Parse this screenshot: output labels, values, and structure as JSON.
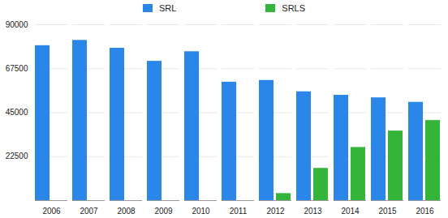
{
  "chart_data": {
    "type": "bar",
    "categories": [
      "2006",
      "2007",
      "2008",
      "2009",
      "2010",
      "2011",
      "2012",
      "2013",
      "2014",
      "2015",
      "2016"
    ],
    "series": [
      {
        "name": "SRL",
        "color": "#2a86e8",
        "values": [
          79300,
          82000,
          78000,
          71300,
          76200,
          60600,
          61500,
          55700,
          53900,
          52600,
          50300
        ]
      },
      {
        "name": "SRLS",
        "color": "#34b53a",
        "values": [
          null,
          null,
          null,
          null,
          null,
          null,
          3600,
          16500,
          27200,
          35600,
          41000
        ]
      }
    ],
    "ylim": [
      0,
      90000
    ],
    "yticks": [
      22500,
      45000,
      67500,
      90000
    ],
    "grid": true,
    "legend": "top"
  }
}
